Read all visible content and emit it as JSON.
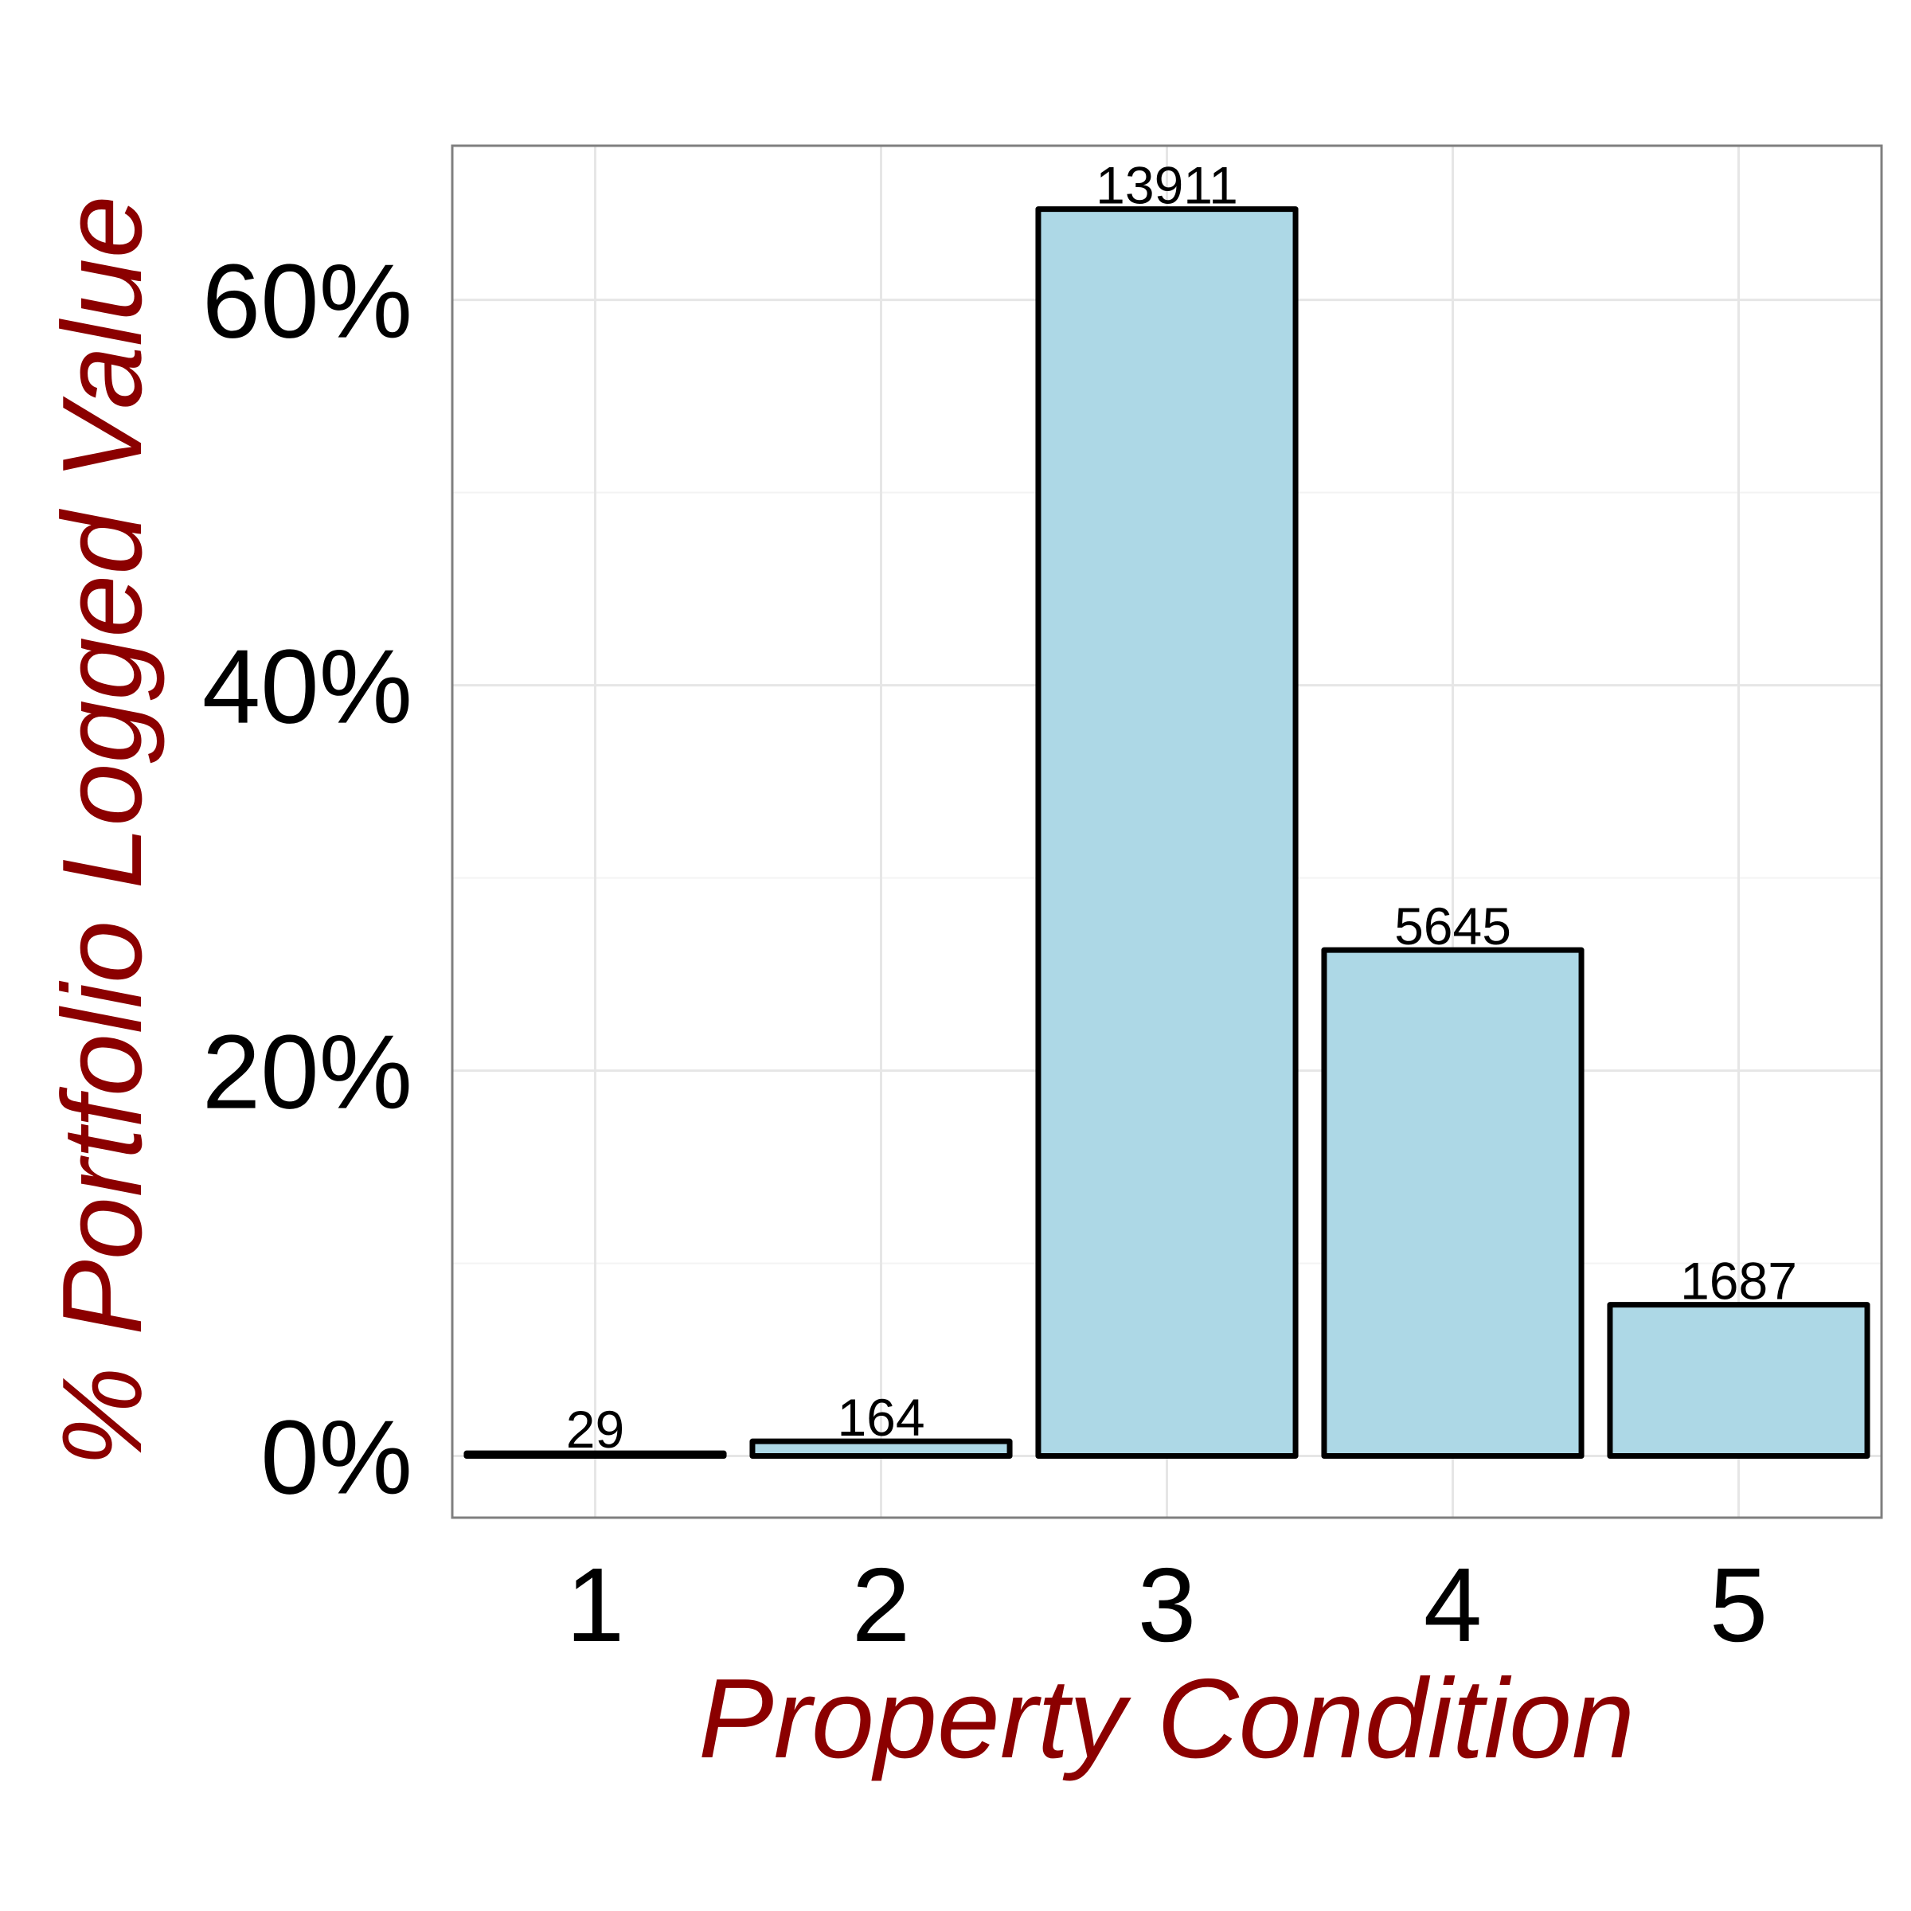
{
  "chart_data": {
    "type": "bar",
    "title": "",
    "xlabel": "Property Condition",
    "ylabel": "% Portfolio Logged Value",
    "categories": [
      "1",
      "2",
      "3",
      "4",
      "5"
    ],
    "counts": [
      29,
      164,
      13911,
      5645,
      1687
    ],
    "values": [
      0.0014,
      0.0076,
      0.6471,
      0.2626,
      0.0785
    ],
    "ylim": [
      -0.032,
      0.68
    ],
    "yticks": [
      0,
      0.2,
      0.4,
      0.6
    ],
    "ytick_labels": [
      "0%",
      "20%",
      "40%",
      "60%"
    ],
    "grid": true,
    "legend": "none",
    "colors": {
      "bar_fill": "#add8e6",
      "bar_stroke": "#000000",
      "axis_title": "#8b0000",
      "panel_border": "#7f7f7f",
      "grid_major": "#e6e6e6",
      "grid_minor": "#f3f3f3"
    }
  }
}
